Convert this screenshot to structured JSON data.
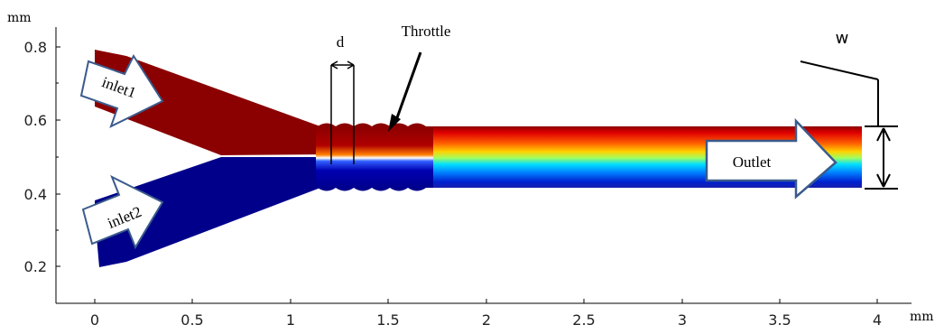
{
  "axes": {
    "y_unit": "mm",
    "x_unit": "mm",
    "x_ticks": [
      "0",
      "0.5",
      "1",
      "1.5",
      "2",
      "2.5",
      "3",
      "3.5",
      "4"
    ],
    "y_ticks": [
      "0.8",
      "0.6",
      "0.4",
      "0.2"
    ]
  },
  "labels": {
    "inlet1": "inlet1",
    "inlet2": "inlet2",
    "outlet": "Outlet",
    "throttle": "Throttle",
    "d": "d",
    "w": "w"
  },
  "colors": {
    "hot": "#8b0000",
    "cold": "#00008b",
    "arrow_fill": "#ffffff",
    "arrow_stroke": "#3b5b8c"
  }
}
